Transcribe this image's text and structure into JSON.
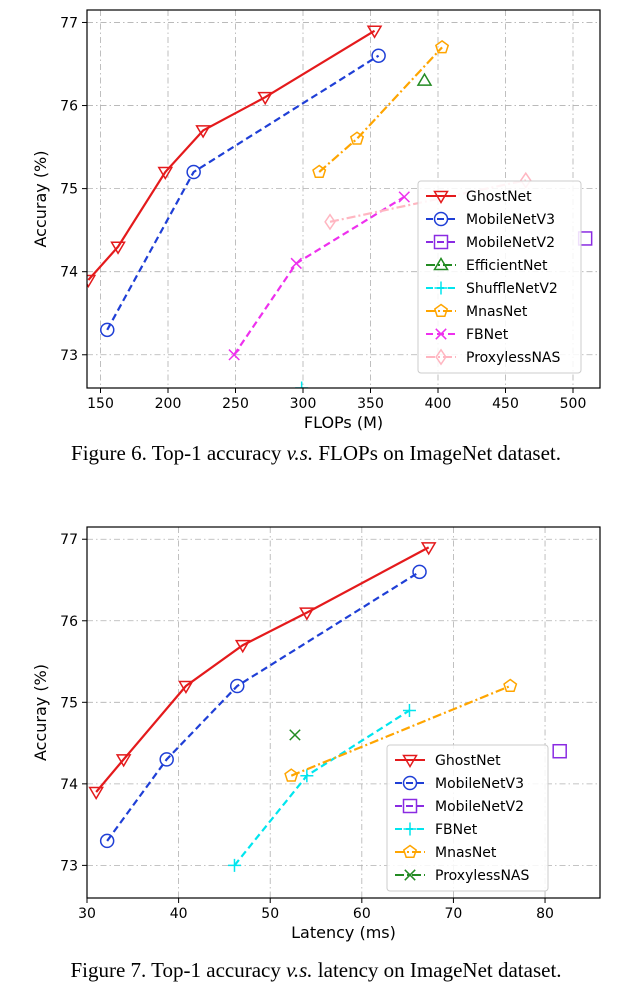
{
  "chart_data": [
    {
      "type": "line",
      "xlabel": "FLOPs (M)",
      "ylabel": "Accuray (%)",
      "xlim": [
        140,
        520
      ],
      "ylim": [
        72.6,
        77.15
      ],
      "xticks": [
        150,
        200,
        250,
        300,
        350,
        400,
        450,
        500
      ],
      "yticks": [
        73,
        74,
        75,
        76,
        77
      ],
      "grid": true,
      "legend_position": "right",
      "caption_parts": [
        "Figure 6. Top-1 accuracy ",
        "v.s.",
        " FLOPs on ImageNet dataset."
      ],
      "series": [
        {
          "name": "GhostNet",
          "color": "#e41a1c",
          "dash": "solid",
          "marker": "triangle-down",
          "x": [
            141,
            163,
            198,
            226,
            272,
            353
          ],
          "y": [
            73.9,
            74.3,
            75.2,
            75.7,
            76.1,
            76.9
          ]
        },
        {
          "name": "MobileNetV3",
          "color": "#1f3fd6",
          "dash": "dashed",
          "marker": "circle",
          "x": [
            155,
            219,
            356
          ],
          "y": [
            73.3,
            75.2,
            76.6
          ]
        },
        {
          "name": "MobileNetV2",
          "color": "#8a2be2",
          "dash": "dashed",
          "marker": "square",
          "x": [
            509
          ],
          "y": [
            74.4
          ]
        },
        {
          "name": "EfficientNet",
          "color": "#228b22",
          "dash": "dashdot",
          "marker": "triangle-up",
          "x": [
            390
          ],
          "y": [
            76.3
          ]
        },
        {
          "name": "ShuffleNetV2",
          "color": "#00e5ee",
          "dash": "dashed",
          "marker": "plus",
          "x": [
            299
          ],
          "y": [
            72.6
          ]
        },
        {
          "name": "MnasNet",
          "color": "#ffa500",
          "dash": "dashdot",
          "marker": "pentagon",
          "x": [
            312,
            340,
            403
          ],
          "y": [
            75.2,
            75.6,
            76.7
          ]
        },
        {
          "name": "FBNet",
          "color": "#ee30ee",
          "dash": "dashed",
          "marker": "x",
          "x": [
            249,
            295,
            375
          ],
          "y": [
            73.0,
            74.1,
            74.9
          ]
        },
        {
          "name": "ProxylessNAS",
          "color": "#ffb6c1",
          "dash": "dashdot",
          "marker": "diamond",
          "x": [
            320,
            465
          ],
          "y": [
            74.6,
            75.1
          ]
        }
      ]
    },
    {
      "type": "line",
      "xlabel": "Latency (ms)",
      "ylabel": "Accuray (%)",
      "xlim": [
        30,
        86
      ],
      "ylim": [
        72.6,
        77.15
      ],
      "xticks": [
        30,
        40,
        50,
        60,
        70,
        80
      ],
      "yticks": [
        73,
        74,
        75,
        76,
        77
      ],
      "grid": true,
      "legend_position": "lower right",
      "caption_parts": [
        "Figure 7. Top-1 accuracy ",
        "v.s.",
        " latency on ImageNet dataset."
      ],
      "series": [
        {
          "name": "GhostNet",
          "color": "#e41a1c",
          "dash": "solid",
          "marker": "triangle-down",
          "x": [
            31.0,
            34.0,
            40.8,
            47.0,
            54.0,
            67.3
          ],
          "y": [
            73.9,
            74.3,
            75.2,
            75.7,
            76.1,
            76.9
          ]
        },
        {
          "name": "MobileNetV3",
          "color": "#1f3fd6",
          "dash": "dashed",
          "marker": "circle",
          "x": [
            32.2,
            38.7,
            46.4,
            66.3
          ],
          "y": [
            73.3,
            74.3,
            75.2,
            76.6
          ]
        },
        {
          "name": "MobileNetV2",
          "color": "#8a2be2",
          "dash": "dashed",
          "marker": "square",
          "x": [
            81.6
          ],
          "y": [
            74.4
          ]
        },
        {
          "name": "FBNet",
          "color": "#00e5ee",
          "dash": "dashed",
          "marker": "plus",
          "x": [
            46.1,
            54.0,
            65.2
          ],
          "y": [
            73.0,
            74.1,
            74.9
          ]
        },
        {
          "name": "MnasNet",
          "color": "#ffa500",
          "dash": "dashdot",
          "marker": "pentagon",
          "x": [
            52.3,
            76.2
          ],
          "y": [
            74.1,
            75.2
          ]
        },
        {
          "name": "ProxylessNAS",
          "color": "#228b22",
          "dash": "dashdot",
          "marker": "x",
          "x": [
            52.7
          ],
          "y": [
            74.6
          ]
        }
      ]
    }
  ]
}
